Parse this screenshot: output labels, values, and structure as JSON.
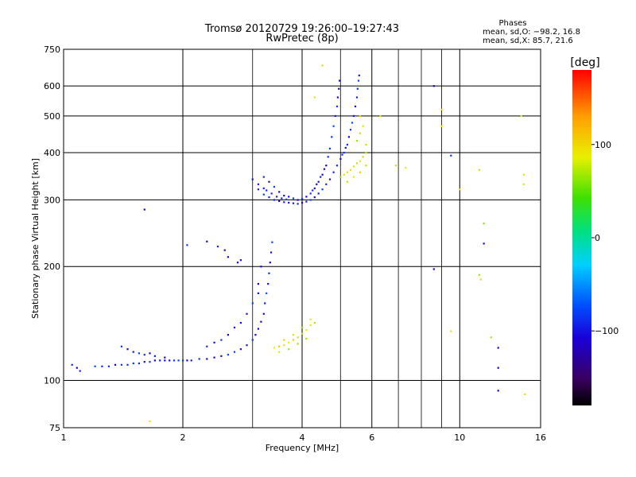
{
  "chart_data": {
    "type": "scatter",
    "title": "Tromsø 20120729 19:26:00–19:27:43",
    "subtitle": "RwPretec (8p)",
    "xlabel": "Frequency [MHz]",
    "ylabel": "Stationary phase Virtual Height [km]",
    "x_scale": "log",
    "y_scale": "log",
    "xlim": [
      1,
      16
    ],
    "ylim": [
      75,
      750
    ],
    "x_ticks": [
      1,
      2,
      4,
      6,
      10,
      16
    ],
    "x_minor_ticks": [
      3,
      5,
      7,
      8,
      9
    ],
    "y_ticks": [
      75,
      100,
      200,
      300,
      400,
      500,
      600,
      750
    ],
    "phases_box": {
      "title": "Phases",
      "line1": "mean, sd,O: −98.2, 16.8",
      "line2": "mean, sd,X:  85.7, 21.6"
    },
    "colorbar": {
      "label": "[deg]",
      "range": [
        -180,
        180
      ],
      "ticks": [
        100,
        0,
        -100
      ],
      "tick_labels": [
        "100",
        "0",
        "−100"
      ]
    },
    "series": [
      {
        "mode": "O",
        "mean_phase": -98.2,
        "points": [
          [
            1.05,
            110
          ],
          [
            1.08,
            108
          ],
          [
            1.1,
            106
          ],
          [
            1.2,
            109
          ],
          [
            1.25,
            109
          ],
          [
            1.3,
            109
          ],
          [
            1.35,
            110
          ],
          [
            1.4,
            110
          ],
          [
            1.45,
            110
          ],
          [
            1.5,
            111
          ],
          [
            1.55,
            111
          ],
          [
            1.6,
            112
          ],
          [
            1.65,
            112
          ],
          [
            1.7,
            113
          ],
          [
            1.75,
            113
          ],
          [
            1.8,
            113
          ],
          [
            1.85,
            113
          ],
          [
            1.9,
            113
          ],
          [
            1.95,
            113
          ],
          [
            2.0,
            113
          ],
          [
            2.05,
            113
          ],
          [
            2.1,
            113
          ],
          [
            2.2,
            114
          ],
          [
            2.3,
            114
          ],
          [
            2.4,
            115
          ],
          [
            2.5,
            116
          ],
          [
            2.6,
            117
          ],
          [
            2.7,
            119
          ],
          [
            2.8,
            121
          ],
          [
            2.9,
            124
          ],
          [
            3.0,
            128
          ],
          [
            3.05,
            132
          ],
          [
            3.1,
            137
          ],
          [
            3.15,
            143
          ],
          [
            3.2,
            150
          ],
          [
            3.22,
            160
          ],
          [
            3.25,
            170
          ],
          [
            3.28,
            180
          ],
          [
            3.3,
            192
          ],
          [
            3.32,
            205
          ],
          [
            3.34,
            218
          ],
          [
            3.36,
            232
          ],
          [
            1.4,
            123
          ],
          [
            1.45,
            121
          ],
          [
            1.5,
            119
          ],
          [
            1.55,
            118
          ],
          [
            1.6,
            117
          ],
          [
            1.65,
            118
          ],
          [
            1.7,
            116
          ],
          [
            1.8,
            115
          ],
          [
            2.3,
            123
          ],
          [
            2.4,
            126
          ],
          [
            2.5,
            128
          ],
          [
            2.6,
            132
          ],
          [
            2.7,
            138
          ],
          [
            2.8,
            142
          ],
          [
            2.9,
            150
          ],
          [
            3.0,
            160
          ],
          [
            3.1,
            170
          ],
          [
            3.1,
            180
          ],
          [
            3.15,
            200
          ],
          [
            2.3,
            233
          ],
          [
            2.45,
            226
          ],
          [
            2.55,
            221
          ],
          [
            2.6,
            212
          ],
          [
            2.75,
            205
          ],
          [
            2.8,
            208
          ],
          [
            1.6,
            283
          ],
          [
            2.05,
            228
          ],
          [
            3.0,
            340
          ],
          [
            3.1,
            320
          ],
          [
            3.2,
            310
          ],
          [
            3.3,
            305
          ],
          [
            3.4,
            300
          ],
          [
            3.5,
            298
          ],
          [
            3.6,
            296
          ],
          [
            3.7,
            295
          ],
          [
            3.8,
            294
          ],
          [
            3.9,
            293
          ],
          [
            4.0,
            295
          ],
          [
            4.1,
            297
          ],
          [
            4.2,
            300
          ],
          [
            4.3,
            305
          ],
          [
            4.4,
            312
          ],
          [
            4.5,
            320
          ],
          [
            4.6,
            330
          ],
          [
            4.7,
            340
          ],
          [
            4.8,
            355
          ],
          [
            4.9,
            370
          ],
          [
            5.0,
            385
          ],
          [
            5.1,
            400
          ],
          [
            5.2,
            420
          ],
          [
            5.25,
            440
          ],
          [
            5.3,
            460
          ],
          [
            5.35,
            480
          ],
          [
            5.4,
            500
          ],
          [
            5.45,
            530
          ],
          [
            5.5,
            560
          ],
          [
            5.52,
            590
          ],
          [
            5.55,
            620
          ],
          [
            5.57,
            640
          ],
          [
            3.2,
            345
          ],
          [
            3.3,
            335
          ],
          [
            3.4,
            325
          ],
          [
            3.5,
            315
          ],
          [
            3.6,
            308
          ],
          [
            3.7,
            306
          ],
          [
            3.8,
            303
          ],
          [
            3.9,
            300
          ],
          [
            4.0,
            302
          ],
          [
            4.1,
            306
          ],
          [
            4.2,
            312
          ],
          [
            4.3,
            322
          ],
          [
            4.4,
            335
          ],
          [
            4.5,
            350
          ],
          [
            4.6,
            370
          ],
          [
            4.65,
            390
          ],
          [
            4.7,
            410
          ],
          [
            4.75,
            440
          ],
          [
            4.8,
            470
          ],
          [
            4.85,
            500
          ],
          [
            4.9,
            530
          ],
          [
            4.92,
            560
          ],
          [
            4.95,
            590
          ],
          [
            4.97,
            620
          ],
          [
            3.1,
            330
          ],
          [
            3.2,
            322
          ],
          [
            3.25,
            318
          ],
          [
            3.35,
            312
          ],
          [
            3.45,
            306
          ],
          [
            3.55,
            303
          ],
          [
            3.65,
            301
          ],
          [
            4.25,
            318
          ],
          [
            4.35,
            330
          ],
          [
            4.45,
            345
          ],
          [
            4.55,
            362
          ],
          [
            5.05,
            395
          ],
          [
            5.15,
            412
          ],
          [
            8.6,
            600
          ],
          [
            9.5,
            393
          ],
          [
            8.6,
            197
          ],
          [
            11.5,
            230
          ],
          [
            12.5,
            122
          ],
          [
            12.5,
            108
          ],
          [
            12.5,
            94
          ]
        ]
      },
      {
        "mode": "X",
        "mean_phase": 85.7,
        "points": [
          [
            3.4,
            122
          ],
          [
            3.5,
            123
          ],
          [
            3.6,
            124
          ],
          [
            3.7,
            126
          ],
          [
            3.8,
            128
          ],
          [
            3.9,
            130
          ],
          [
            4.0,
            133
          ],
          [
            4.1,
            136
          ],
          [
            4.2,
            140
          ],
          [
            4.3,
            142
          ],
          [
            3.6,
            128
          ],
          [
            3.8,
            132
          ],
          [
            4.0,
            138
          ],
          [
            4.2,
            145
          ],
          [
            3.5,
            119
          ],
          [
            3.7,
            121
          ],
          [
            3.9,
            125
          ],
          [
            4.1,
            129
          ],
          [
            5.0,
            345
          ],
          [
            5.1,
            350
          ],
          [
            5.2,
            355
          ],
          [
            5.3,
            360
          ],
          [
            5.4,
            368
          ],
          [
            5.5,
            375
          ],
          [
            5.6,
            380
          ],
          [
            5.7,
            390
          ],
          [
            5.8,
            400
          ],
          [
            5.5,
            430
          ],
          [
            5.6,
            450
          ],
          [
            5.7,
            470
          ],
          [
            5.6,
            500
          ],
          [
            5.8,
            420
          ],
          [
            5.2,
            335
          ],
          [
            5.4,
            345
          ],
          [
            5.6,
            355
          ],
          [
            5.8,
            370
          ],
          [
            4.3,
            560
          ],
          [
            4.5,
            680
          ],
          [
            6.3,
            500
          ],
          [
            6.9,
            370
          ],
          [
            7.3,
            365
          ],
          [
            9.0,
            520
          ],
          [
            9.0,
            470
          ],
          [
            9.5,
            135
          ],
          [
            10.0,
            320
          ],
          [
            11.2,
            360
          ],
          [
            11.2,
            190
          ],
          [
            11.3,
            185
          ],
          [
            11.5,
            260
          ],
          [
            12.0,
            130
          ],
          [
            14.3,
            500
          ],
          [
            14.5,
            350
          ],
          [
            14.5,
            330
          ],
          [
            14.6,
            92
          ],
          [
            1.65,
            78
          ]
        ]
      }
    ]
  }
}
